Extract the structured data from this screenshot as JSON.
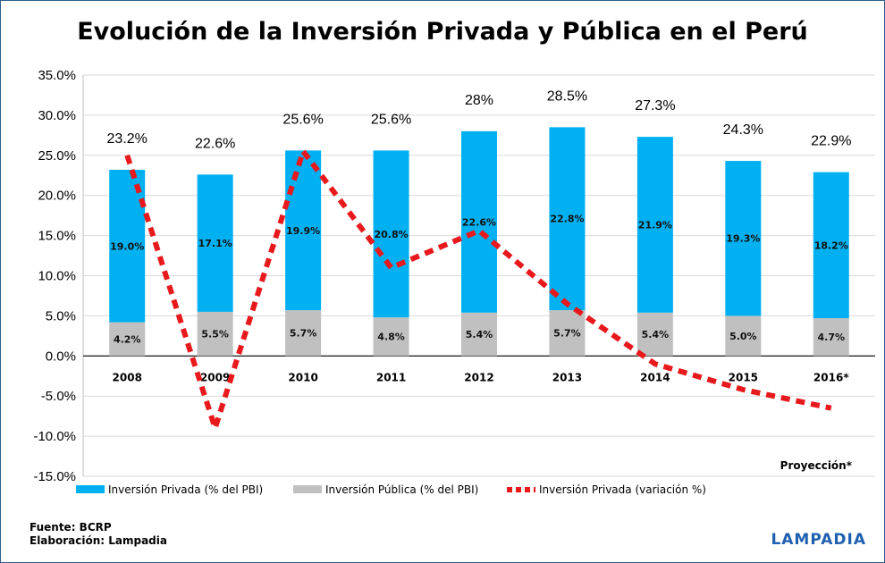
{
  "chart_data": {
    "type": "bar",
    "title": "Evolución de la Inversión Privada y Pública en el Perú",
    "categories": [
      "2008",
      "2009",
      "2010",
      "2011",
      "2012",
      "2013",
      "2014",
      "2015",
      "2016*"
    ],
    "totals": [
      23.2,
      22.6,
      25.6,
      25.6,
      28.0,
      28.5,
      27.3,
      24.3,
      22.9
    ],
    "total_labels": [
      "23.2%",
      "22.6%",
      "25.6%",
      "25.6%",
      "28%",
      "28.5%",
      "27.3%",
      "24.3%",
      "22.9%"
    ],
    "series": [
      {
        "name": "Inversión Privada (% del PBI)",
        "type": "bar",
        "stacked": true,
        "color": "#00b0f0",
        "values": [
          19.0,
          17.1,
          19.9,
          20.8,
          22.6,
          22.8,
          21.9,
          19.3,
          18.2
        ],
        "labels": [
          "19.0%",
          "17.1%",
          "19.9%",
          "20.8%",
          "22.6%",
          "22.8%",
          "21.9%",
          "19.3%",
          "18.2%"
        ]
      },
      {
        "name": "Inversión Pública (% del PBI)",
        "type": "bar",
        "stacked": true,
        "color": "#c0c0c0",
        "values": [
          4.2,
          5.5,
          5.7,
          4.8,
          5.4,
          5.7,
          5.4,
          5.0,
          4.7
        ],
        "labels": [
          "4.2%",
          "5.5%",
          "5.7%",
          "4.8%",
          "5.4%",
          "5.7%",
          "5.4%",
          "5.0%",
          "4.7%"
        ]
      },
      {
        "name": "Inversión Privada (variación %)",
        "type": "line",
        "style": "dashed",
        "color": "#e8191c",
        "values": [
          25.0,
          -9.0,
          25.5,
          11.0,
          15.6,
          6.5,
          -1.0,
          -4.2,
          -6.5
        ]
      }
    ],
    "ylim": [
      -15,
      35
    ],
    "yticks": [
      "-15.0%",
      "-10.0%",
      "-5.0%",
      "0.0%",
      "5.0%",
      "10.0%",
      "15.0%",
      "20.0%",
      "25.0%",
      "30.0%",
      "35.0%"
    ],
    "grid": true,
    "legend": "bottom",
    "annotation": "Proyección*",
    "xlabel": "",
    "ylabel": ""
  },
  "footer": {
    "source": "Fuente: BCRP",
    "credit": "Elaboración: Lampadia",
    "brand": "LAMPADIA"
  }
}
